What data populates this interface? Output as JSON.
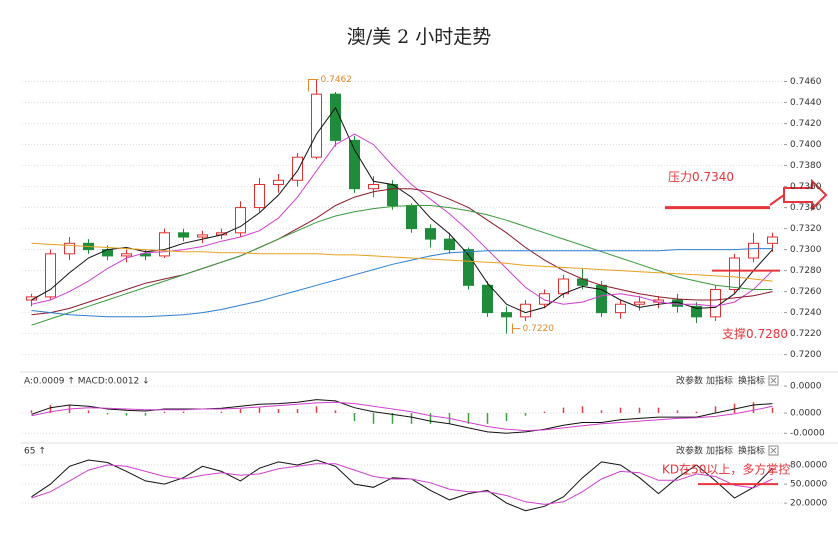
{
  "chart_data": [
    {
      "type": "candlestick",
      "title": "澳/美 2 小时走势",
      "open": [
        0.7252,
        0.7255,
        0.7296,
        0.7306,
        0.73,
        0.7294,
        0.7296,
        0.7294,
        0.7316,
        0.7312,
        0.7314,
        0.7316,
        0.734,
        0.7362,
        0.7366,
        0.7388,
        0.7448,
        0.7404,
        0.7358,
        0.7362,
        0.7342,
        0.732,
        0.731,
        0.73,
        0.7266,
        0.724,
        0.7236,
        0.7248,
        0.7258,
        0.7272,
        0.7266,
        0.724,
        0.7248,
        0.725,
        0.7252,
        0.7246,
        0.7236,
        0.7262,
        0.7292,
        0.7306
      ],
      "high": [
        0.7258,
        0.73,
        0.7312,
        0.731,
        0.7304,
        0.73,
        0.73,
        0.732,
        0.732,
        0.7318,
        0.732,
        0.7346,
        0.7368,
        0.7372,
        0.7392,
        0.7462,
        0.745,
        0.7408,
        0.737,
        0.7366,
        0.7344,
        0.7324,
        0.7316,
        0.7302,
        0.727,
        0.7246,
        0.7252,
        0.7262,
        0.7276,
        0.7282,
        0.727,
        0.7252,
        0.7256,
        0.7256,
        0.7258,
        0.725,
        0.7266,
        0.7296,
        0.7316,
        0.7316
      ],
      "low": [
        0.7246,
        0.7252,
        0.729,
        0.7296,
        0.729,
        0.7288,
        0.729,
        0.7292,
        0.7308,
        0.7306,
        0.731,
        0.7312,
        0.7336,
        0.7354,
        0.736,
        0.7386,
        0.7398,
        0.7354,
        0.735,
        0.7338,
        0.7316,
        0.7302,
        0.7296,
        0.7262,
        0.7236,
        0.722,
        0.7232,
        0.7244,
        0.7254,
        0.7262,
        0.7236,
        0.7234,
        0.7242,
        0.7244,
        0.724,
        0.723,
        0.7232,
        0.7258,
        0.7288,
        0.7298
      ],
      "close": [
        0.7255,
        0.7296,
        0.7306,
        0.73,
        0.7294,
        0.7296,
        0.7294,
        0.7316,
        0.7312,
        0.7314,
        0.7316,
        0.734,
        0.7362,
        0.7366,
        0.7388,
        0.7448,
        0.7404,
        0.7358,
        0.7362,
        0.7342,
        0.732,
        0.731,
        0.73,
        0.7266,
        0.724,
        0.7236,
        0.7248,
        0.7258,
        0.7272,
        0.7266,
        0.724,
        0.7248,
        0.725,
        0.7252,
        0.7246,
        0.7236,
        0.7262,
        0.7292,
        0.7306,
        0.7312
      ],
      "up_color": "#e0302f",
      "down_color": "#1e8c3a",
      "series": [
        {
          "color": "#111111",
          "values": [
            0.7252,
            0.7262,
            0.7278,
            0.7292,
            0.73,
            0.7302,
            0.7298,
            0.73,
            0.7306,
            0.731,
            0.7314,
            0.7322,
            0.7335,
            0.7352,
            0.7375,
            0.741,
            0.7435,
            0.7395,
            0.7365,
            0.7362,
            0.735,
            0.733,
            0.7315,
            0.7295,
            0.7268,
            0.7248,
            0.724,
            0.7245,
            0.7258,
            0.7265,
            0.7262,
            0.7252,
            0.7245,
            0.7248,
            0.725,
            0.7244,
            0.7245,
            0.7258,
            0.728,
            0.73
          ]
        },
        {
          "color": "#d040d0",
          "values": [
            0.7248,
            0.7252,
            0.726,
            0.727,
            0.7282,
            0.7292,
            0.7297,
            0.7298,
            0.73,
            0.7303,
            0.7308,
            0.7312,
            0.7318,
            0.733,
            0.735,
            0.7375,
            0.74,
            0.741,
            0.74,
            0.738,
            0.7362,
            0.7348,
            0.7334,
            0.7318,
            0.73,
            0.7282,
            0.7264,
            0.7252,
            0.7248,
            0.725,
            0.7256,
            0.7258,
            0.7255,
            0.725,
            0.7248,
            0.7248,
            0.7246,
            0.725,
            0.7262,
            0.728
          ]
        },
        {
          "color": "#8b1a2a",
          "values": [
            0.7238,
            0.724,
            0.7244,
            0.725,
            0.7256,
            0.7262,
            0.7268,
            0.7272,
            0.7276,
            0.7282,
            0.7288,
            0.7294,
            0.7302,
            0.731,
            0.732,
            0.733,
            0.7342,
            0.735,
            0.7355,
            0.7358,
            0.7358,
            0.7355,
            0.7348,
            0.734,
            0.7328,
            0.7316,
            0.7302,
            0.729,
            0.728,
            0.7272,
            0.7266,
            0.7262,
            0.7258,
            0.7255,
            0.7253,
            0.7252,
            0.7252,
            0.7254,
            0.7256,
            0.726
          ]
        },
        {
          "color": "#3a9a3a",
          "values": [
            0.7228,
            0.7234,
            0.724,
            0.7246,
            0.7252,
            0.7258,
            0.7264,
            0.727,
            0.7276,
            0.7282,
            0.7288,
            0.7294,
            0.7302,
            0.731,
            0.7318,
            0.7326,
            0.7332,
            0.7336,
            0.7339,
            0.7341,
            0.7342,
            0.7342,
            0.734,
            0.7337,
            0.7333,
            0.7328,
            0.7322,
            0.7316,
            0.731,
            0.7304,
            0.7298,
            0.7292,
            0.7286,
            0.728,
            0.7274,
            0.727,
            0.7266,
            0.7264,
            0.7262,
            0.7262
          ]
        },
        {
          "color": "#2a7fd0",
          "values": [
            0.7242,
            0.724,
            0.7238,
            0.7237,
            0.7236,
            0.7236,
            0.7236,
            0.7237,
            0.7238,
            0.724,
            0.7243,
            0.7247,
            0.7251,
            0.7256,
            0.7261,
            0.7266,
            0.7271,
            0.7276,
            0.7281,
            0.7286,
            0.729,
            0.7294,
            0.7297,
            0.7298,
            0.7299,
            0.7299,
            0.7299,
            0.7299,
            0.7299,
            0.7299,
            0.7299,
            0.7299,
            0.7299,
            0.7299,
            0.73,
            0.73,
            0.73,
            0.73,
            0.7301,
            0.7301
          ]
        },
        {
          "color": "#e8a020",
          "values": [
            0.7306,
            0.7305,
            0.7304,
            0.7303,
            0.7302,
            0.7301,
            0.73,
            0.7299,
            0.7298,
            0.7298,
            0.7297,
            0.7297,
            0.7296,
            0.7296,
            0.7296,
            0.7296,
            0.7295,
            0.7295,
            0.7294,
            0.7293,
            0.7292,
            0.7291,
            0.729,
            0.7289,
            0.7288,
            0.7287,
            0.7285,
            0.7284,
            0.7283,
            0.7282,
            0.7281,
            0.728,
            0.7279,
            0.7278,
            0.7277,
            0.7276,
            0.7275,
            0.7274,
            0.7272,
            0.727
          ]
        }
      ],
      "high_label": {
        "text": "0.7462",
        "value": 0.7462
      },
      "low_label": {
        "text": "0.7220",
        "value": 0.722
      },
      "resistance": {
        "text": "压力0.7340",
        "value": 0.734
      },
      "support": {
        "text": "支撑0.7280",
        "value": 0.728
      },
      "ylim": [
        0.7193,
        0.7471
      ],
      "yticks": [
        {
          "value": 0.746,
          "label": "0.7460"
        },
        {
          "value": 0.744,
          "label": "0.7440"
        },
        {
          "value": 0.742,
          "label": "0.7420"
        },
        {
          "value": 0.74,
          "label": "0.7400"
        },
        {
          "value": 0.738,
          "label": "0.7380"
        },
        {
          "value": 0.736,
          "label": "0.7360"
        },
        {
          "value": 0.734,
          "label": "0.7340"
        },
        {
          "value": 0.732,
          "label": "0.7320"
        },
        {
          "value": 0.73,
          "label": "0.7300"
        },
        {
          "value": 0.728,
          "label": "0.7280"
        },
        {
          "value": 0.726,
          "label": "0.7260"
        },
        {
          "value": 0.724,
          "label": "0.7240"
        },
        {
          "value": 0.722,
          "label": "0.7220"
        },
        {
          "value": 0.72,
          "label": "0.7200"
        }
      ]
    },
    {
      "type": "macd",
      "header": "A:0.0009 ↑ MACD:0.0012 ↓",
      "toolbar": [
        "改参数",
        "加指标",
        "换指标"
      ],
      "series": [
        {
          "color": "#111111",
          "values": [
            -2e-06,
            8e-06,
            1.2e-05,
            1e-05,
            6e-06,
            4e-06,
            3e-06,
            6e-06,
            6e-06,
            6e-06,
            7e-06,
            1e-05,
            1.3e-05,
            1.4e-05,
            1.6e-05,
            2e-05,
            1.8e-05,
            8e-06,
            2e-06,
            -2e-06,
            -6e-06,
            -1.2e-05,
            -1.6e-05,
            -2.2e-05,
            -2.8e-05,
            -3e-05,
            -2.8e-05,
            -2.4e-05,
            -1.8e-05,
            -1.4e-05,
            -1.4e-05,
            -1e-05,
            -8e-06,
            -6e-06,
            -6e-06,
            -6e-06,
            0,
            6e-06,
            1.2e-05,
            1.4e-05
          ]
        },
        {
          "color": "#d040d0",
          "values": [
            -4e-06,
            2e-06,
            6e-06,
            8e-06,
            7e-06,
            6e-06,
            5e-06,
            5e-06,
            5e-06,
            6e-06,
            6e-06,
            7e-06,
            9e-06,
            1.1e-05,
            1.3e-05,
            1.5e-05,
            1.6e-05,
            1.4e-05,
            1e-05,
            6e-06,
            2e-06,
            -4e-06,
            -8e-06,
            -1.4e-05,
            -2e-05,
            -2.4e-05,
            -2.6e-05,
            -2.5e-05,
            -2.2e-05,
            -1.9e-05,
            -1.6e-05,
            -1.4e-05,
            -1.2e-05,
            -1e-05,
            -8e-06,
            -7e-06,
            -5e-06,
            -1e-06,
            4e-06,
            1e-05
          ]
        }
      ],
      "histogram": [
        4e-06,
        1.2e-05,
        1.2e-05,
        4e-06,
        -2e-06,
        -4e-06,
        -4e-06,
        2e-06,
        2e-06,
        0,
        2e-06,
        6e-06,
        8e-06,
        6e-06,
        6e-06,
        1e-05,
        4e-06,
        -1.2e-05,
        -1.6e-05,
        -1.6e-05,
        -1.6e-05,
        -1.6e-05,
        -1.6e-05,
        -1.6e-05,
        -1.6e-05,
        -1.2e-05,
        -4e-06,
        2e-06,
        8e-06,
        1e-05,
        4e-06,
        8e-06,
        8e-06,
        8e-06,
        4e-06,
        2e-06,
        1e-05,
        1.4e-05,
        1.6e-05,
        8e-06
      ],
      "up_color": "#e04040",
      "down_color": "#3aa040",
      "ylim": [
        -4.3e-05,
        5.5e-05
      ],
      "yticks": [
        {
          "value": 4e-05,
          "label": "0.0000"
        },
        {
          "value": 0,
          "label": "0.0000"
        },
        {
          "value": -3e-05,
          "label": "-0.0000"
        }
      ]
    },
    {
      "type": "kd",
      "header": "65 ↑",
      "toolbar": [
        "改参数",
        "加指标",
        "换指标"
      ],
      "series": [
        {
          "color": "#111111",
          "values": [
            30,
            50,
            78,
            88,
            84,
            70,
            55,
            50,
            60,
            78,
            70,
            55,
            75,
            85,
            80,
            88,
            78,
            50,
            45,
            60,
            58,
            40,
            25,
            35,
            40,
            20,
            8,
            15,
            30,
            60,
            85,
            80,
            60,
            35,
            60,
            80,
            55,
            28,
            45,
            75
          ]
        },
        {
          "color": "#d040d0",
          "values": [
            28,
            38,
            55,
            72,
            80,
            78,
            70,
            62,
            58,
            64,
            68,
            64,
            66,
            74,
            78,
            82,
            82,
            72,
            62,
            58,
            58,
            52,
            42,
            38,
            38,
            32,
            22,
            18,
            22,
            38,
            58,
            70,
            68,
            56,
            56,
            66,
            62,
            48,
            44,
            58
          ]
        }
      ],
      "level": {
        "text": "KD在50以上，多方掌控",
        "value": 50
      },
      "ylim": [
        6,
        110
      ],
      "yticks": [
        {
          "value": 80,
          "label": "80.0000"
        },
        {
          "value": 50,
          "label": "50.0000"
        },
        {
          "value": 20,
          "label": "20.0000"
        }
      ]
    }
  ]
}
